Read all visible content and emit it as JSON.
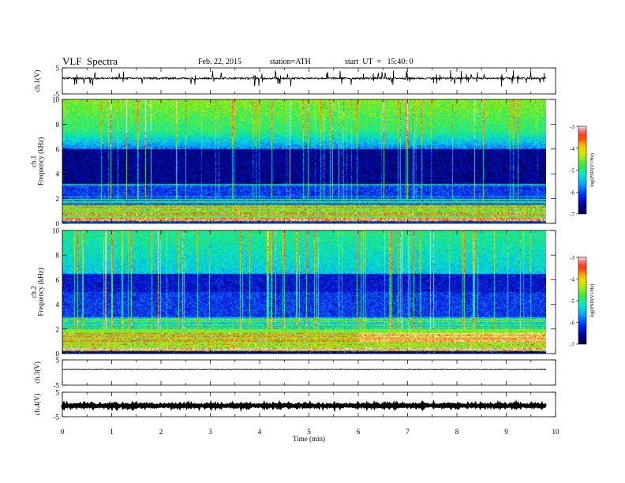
{
  "header": {
    "title": "VLF  Spectra",
    "date": "Feb. 22, 2015",
    "station": "station=ATH",
    "start": "start  UT  =   15:40: 0"
  },
  "chart_data": [
    {
      "type": "line",
      "ylabel": "ch.1(V)",
      "ylim": [
        -5,
        5
      ],
      "yticks": [
        "5",
        "-5"
      ],
      "baseline": 1.0,
      "noise": 0.35,
      "spike_count": 70
    },
    {
      "type": "heatmap",
      "ylabel": "ch.1\nFrequency  (kHz)",
      "ylim": [
        0,
        10
      ],
      "yticks": [
        "0",
        "2",
        "4",
        "6",
        "8",
        "10"
      ],
      "colorbar": {
        "label": "log(PSD(V²/Hz)",
        "range": [
          -7,
          -3
        ],
        "ticks": [
          "-3",
          "-4",
          "-5",
          "-6",
          "-7"
        ]
      }
    },
    {
      "type": "heatmap",
      "ylabel": "ch.2\nFrequency  (kHz)",
      "ylim": [
        0,
        10
      ],
      "yticks": [
        "0",
        "2",
        "4",
        "6",
        "8",
        "10"
      ],
      "colorbar": {
        "label": "log(PSD(V²/Hz)",
        "range": [
          -7,
          -3
        ],
        "ticks": [
          "-3",
          "-4",
          "-5",
          "-6",
          "-7"
        ]
      }
    },
    {
      "type": "line",
      "ylabel": "ch.3(V)",
      "ylim": [
        -5,
        5
      ],
      "yticks": [
        "5",
        "-5"
      ],
      "baseline": 1.2,
      "noise": 0.12
    },
    {
      "type": "line",
      "ylabel": "ch.4(V)",
      "ylim": [
        -5,
        5
      ],
      "yticks": [
        "5",
        "-5"
      ],
      "baseline": -0.5,
      "noise": 0.3
    }
  ],
  "xaxis": {
    "label": "Time  (min)",
    "range": [
      0,
      10
    ],
    "ticks": [
      "0",
      "1",
      "2",
      "3",
      "4",
      "5",
      "6",
      "7",
      "8",
      "9",
      "10"
    ],
    "data_end": 9.8
  }
}
